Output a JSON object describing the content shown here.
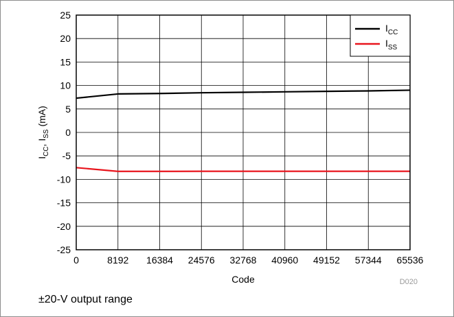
{
  "chart_data": {
    "type": "line",
    "x": [
      0,
      8192,
      16384,
      24576,
      32768,
      40960,
      49152,
      57344,
      65536
    ],
    "series": [
      {
        "name_main": "I",
        "name_sub": "CC",
        "color": "#000000",
        "values": [
          7.3,
          8.2,
          8.3,
          8.45,
          8.55,
          8.65,
          8.75,
          8.85,
          9.0
        ]
      },
      {
        "name_main": "I",
        "name_sub": "SS",
        "color": "#e8141c",
        "values": [
          -7.5,
          -8.3,
          -8.3,
          -8.28,
          -8.28,
          -8.28,
          -8.28,
          -8.28,
          -8.28
        ]
      }
    ],
    "xlim": [
      0,
      65536
    ],
    "ylim": [
      -25,
      25
    ],
    "xticks": [
      0,
      8192,
      16384,
      24576,
      32768,
      40960,
      49152,
      57344,
      65536
    ],
    "yticks": [
      25,
      20,
      15,
      10,
      5,
      0,
      -5,
      -10,
      -15,
      -20,
      -25
    ],
    "xlabel": "Code",
    "ylabel": {
      "p1": "I",
      "s1": "CC",
      "p2": ", I",
      "s2": "SS",
      "p3": " (mA)"
    },
    "grid": true,
    "legend_position": "top-right",
    "figure_id": "D020"
  },
  "caption": "±20-V output range"
}
